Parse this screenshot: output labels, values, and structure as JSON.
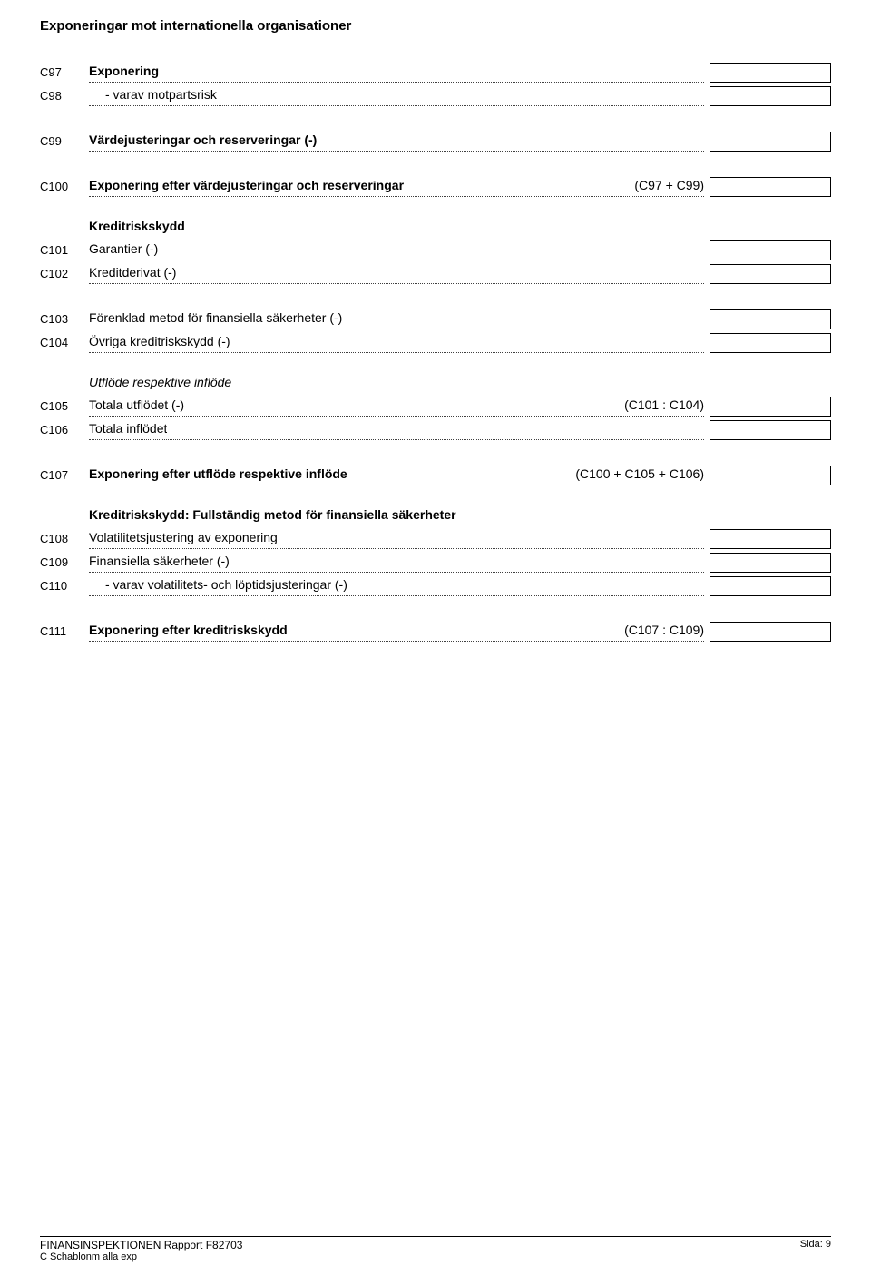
{
  "title": "Exponeringar mot internationella organisationer",
  "sections": [
    {
      "rows": [
        {
          "code": "C97",
          "label": "Exponering",
          "bold": true,
          "formula": "",
          "box": true
        },
        {
          "code": "C98",
          "label": "- varav motpartsrisk",
          "indent": true,
          "formula": "",
          "box": true
        }
      ]
    },
    {
      "rows": [
        {
          "code": "C99",
          "label": "Värdejusteringar och reserveringar (-)",
          "bold": true,
          "formula": "",
          "box": true
        }
      ]
    },
    {
      "rows": [
        {
          "code": "C100",
          "label": "Exponering efter värdejusteringar och reserveringar",
          "bold": true,
          "formula": "(C97 + C99)",
          "box": true
        }
      ]
    },
    {
      "header": "Kreditriskskydd",
      "rows": [
        {
          "code": "C101",
          "label": "Garantier (-)",
          "formula": "",
          "box": true
        },
        {
          "code": "C102",
          "label": "Kreditderivat (-)",
          "formula": "",
          "box": true
        }
      ]
    },
    {
      "rows": [
        {
          "code": "C103",
          "label": "Förenklad metod för finansiella säkerheter (-)",
          "formula": "",
          "box": true
        },
        {
          "code": "C104",
          "label": "Övriga kreditriskskydd (-)",
          "formula": "",
          "box": true
        }
      ]
    },
    {
      "headerItalic": "Utflöde respektive inflöde",
      "rows": [
        {
          "code": "C105",
          "label": "Totala utflödet (-)",
          "formula": "(C101 : C104)",
          "box": true
        },
        {
          "code": "C106",
          "label": "Totala inflödet",
          "formula": "",
          "box": true
        }
      ]
    },
    {
      "rows": [
        {
          "code": "C107",
          "label": "Exponering efter utflöde respektive inflöde",
          "bold": true,
          "formula": "(C100 + C105 + C106)",
          "box": true
        }
      ]
    },
    {
      "header": "Kreditriskskydd: Fullständig metod för finansiella säkerheter",
      "rows": [
        {
          "code": "C108",
          "label": "Volatilitetsjustering av exponering",
          "formula": "",
          "box": true
        },
        {
          "code": "C109",
          "label": "Finansiella säkerheter (-)",
          "formula": "",
          "box": true
        },
        {
          "code": "C110",
          "label": "- varav volatilitets- och löptidsjusteringar (-)",
          "indent": true,
          "formula": "",
          "box": true
        }
      ]
    },
    {
      "rows": [
        {
          "code": "C111",
          "label": "Exponering efter kreditriskskydd",
          "bold": true,
          "formula": "(C107 : C109)",
          "box": true
        }
      ]
    }
  ],
  "footer": {
    "line1": "FINANSINSPEKTIONEN Rapport F82703",
    "line2": "C Schablonm alla exp",
    "right": "Sida: 9"
  }
}
